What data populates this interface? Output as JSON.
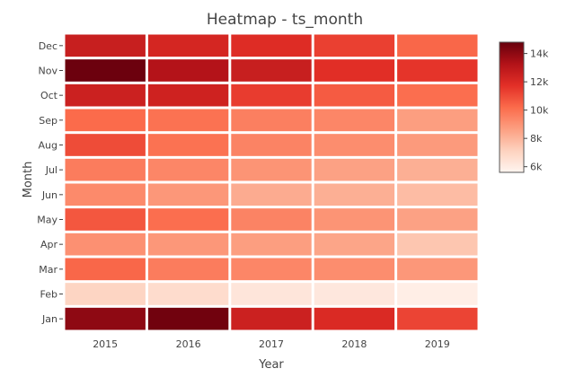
{
  "chart_data": {
    "type": "heatmap",
    "title": "Heatmap - ts_month",
    "xlabel": "Year",
    "ylabel": "Month",
    "x": [
      "2015",
      "2016",
      "2017",
      "2018",
      "2019"
    ],
    "y": [
      "Jan",
      "Feb",
      "Mar",
      "Apr",
      "May",
      "Jun",
      "Jul",
      "Aug",
      "Sep",
      "Oct",
      "Nov",
      "Dec"
    ],
    "z": [
      [
        14000,
        14600,
        12500,
        12000,
        11200
      ],
      [
        7000,
        6700,
        6300,
        6200,
        5900
      ],
      [
        10300,
        9700,
        9400,
        9200,
        8900
      ],
      [
        9100,
        8900,
        8700,
        8500,
        7500
      ],
      [
        10700,
        10100,
        9500,
        9000,
        8600
      ],
      [
        9300,
        8900,
        8300,
        8200,
        7800
      ],
      [
        9700,
        9400,
        9000,
        8600,
        8200
      ],
      [
        11000,
        10000,
        9500,
        9200,
        8800
      ],
      [
        10200,
        10000,
        9600,
        9400,
        8700
      ],
      [
        12500,
        12400,
        11400,
        10600,
        10100
      ],
      [
        14700,
        13200,
        12600,
        11800,
        11600
      ],
      [
        12600,
        12200,
        11900,
        11300,
        10300
      ]
    ],
    "colorbar": {
      "ticks": [
        6000,
        8000,
        10000,
        12000,
        14000
      ],
      "tick_labels": [
        "6k",
        "8k",
        "10k",
        "12k",
        "14k"
      ],
      "range": [
        5600,
        14800
      ]
    },
    "colorscale": [
      "#fff5f0",
      "#fdd2bf",
      "#fc9f81",
      "#fb6b4b",
      "#e32f27",
      "#b21218",
      "#67000d"
    ],
    "legend_placement": "right",
    "grid": false
  }
}
